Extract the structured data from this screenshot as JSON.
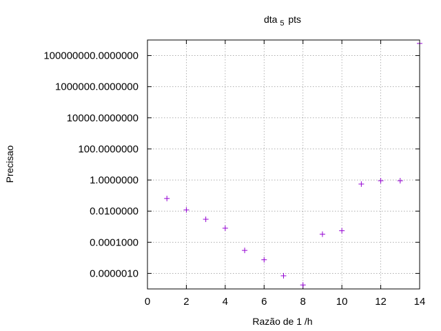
{
  "chart_data": {
    "type": "scatter",
    "title": "dta",
    "title_subscript": "5",
    "title_suffix": "pts",
    "xlabel": "Razão de  1 /h",
    "ylabel": "Precisao",
    "xlim": [
      0,
      14
    ],
    "ylim": [
      1e-07,
      1000000000.0
    ],
    "yscale": "log",
    "grid": true,
    "marker": "+",
    "marker_color": "#9400d3",
    "x_ticks": [
      0,
      2,
      4,
      6,
      8,
      10,
      12,
      14
    ],
    "x_tick_labels": [
      "0",
      "2",
      "4",
      "6",
      "8",
      "10",
      "12",
      "14"
    ],
    "y_ticks": [
      1e-06,
      0.0001,
      0.01,
      1,
      100,
      10000,
      1000000,
      100000000
    ],
    "y_tick_labels": [
      "0.0000010",
      "0.0001000",
      "0.0100000",
      "1.0000000",
      "100.0000000",
      "10000.0000000",
      "1000000.0000000",
      "100000000.0000000"
    ],
    "x": [
      1,
      2,
      3,
      4,
      5,
      6,
      7,
      8,
      9,
      10,
      11,
      12,
      13,
      14
    ],
    "y": [
      0.065,
      0.012,
      0.003,
      0.0008,
      3e-05,
      7.5e-06,
      7e-07,
      1.8e-07,
      0.00033,
      0.00055,
      0.55,
      0.9,
      0.9,
      600000000
    ]
  }
}
